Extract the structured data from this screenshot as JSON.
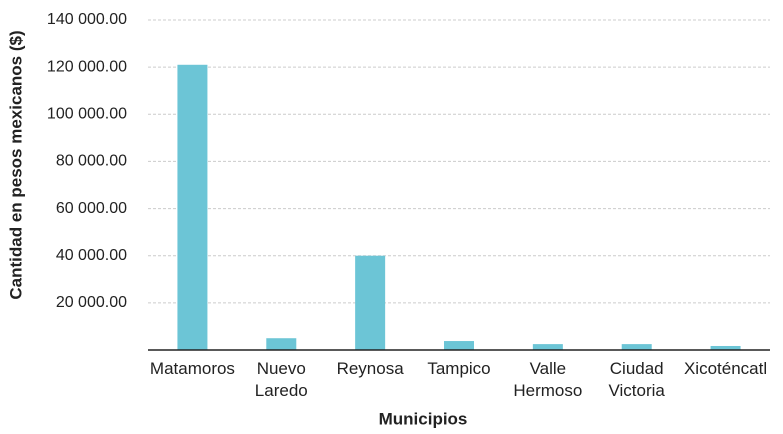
{
  "chart_data": {
    "type": "bar",
    "x_label": "Municipios",
    "y_label": "Cantidad en pesos mexicanos ($)",
    "categories": [
      "Matamoros",
      "Nuevo Laredo",
      "Reynosa",
      "Tampico",
      "Valle Hermoso",
      "Ciudad Victoria",
      "Xicoténcatl"
    ],
    "values": [
      121000,
      5000,
      40000,
      3800,
      2500,
      2500,
      1700
    ],
    "color": "#6cc5d6",
    "ylim": [
      0,
      140000
    ],
    "yticks": [
      {
        "value": 20000,
        "label": "20 000.00"
      },
      {
        "value": 40000,
        "label": "40 000.00"
      },
      {
        "value": 60000,
        "label": "60 000.00"
      },
      {
        "value": 80000,
        "label": "80 000.00"
      },
      {
        "value": 100000,
        "label": "100 000.00"
      },
      {
        "value": 120000,
        "label": "120 000.00"
      },
      {
        "value": 140000,
        "label": "140 000.00"
      }
    ],
    "grid": true
  }
}
